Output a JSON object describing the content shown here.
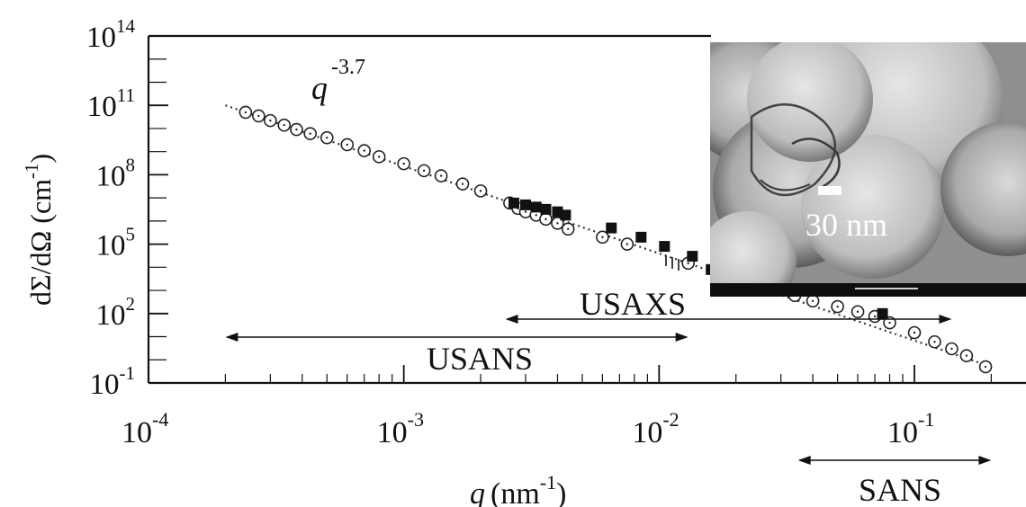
{
  "chart_data": {
    "type": "scatter",
    "scale": {
      "x": "log",
      "y": "log"
    },
    "xlim": [
      0.0001,
      0.25
    ],
    "ylim": [
      0.1,
      100000000000000
    ],
    "x_ticks": [
      {
        "value": 0.0001,
        "base": "10",
        "exp": "-4"
      },
      {
        "value": 0.001,
        "base": "10",
        "exp": "-3"
      },
      {
        "value": 0.01,
        "base": "10",
        "exp": "-2"
      },
      {
        "value": 0.1,
        "base": "10",
        "exp": "-1"
      }
    ],
    "y_ticks": [
      {
        "value": 0.1,
        "base": "10",
        "exp": "-1"
      },
      {
        "value": 100,
        "base": "10",
        "exp": "2"
      },
      {
        "value": 100000,
        "base": "10",
        "exp": "5"
      },
      {
        "value": 100000000,
        "base": "10",
        "exp": "8"
      },
      {
        "value": 100000000000,
        "base": "10",
        "exp": "11"
      },
      {
        "value": 100000000000000,
        "base": "10",
        "exp": "14"
      }
    ],
    "xlabel": {
      "var": "q",
      "unit": "(nm",
      "exp": "-1",
      "close": ")"
    },
    "ylabel": {
      "main": "dΣ/dΩ (cm",
      "exp": "-1",
      "close": ")"
    },
    "series": [
      {
        "marker": "open-circle",
        "x": [
          0.00024,
          0.00027,
          0.0003,
          0.00034,
          0.00038,
          0.00043,
          0.0005,
          0.0006,
          0.0007,
          0.0008,
          0.001,
          0.0012,
          0.0014,
          0.0017,
          0.002,
          0.0026,
          0.0028,
          0.003,
          0.0033,
          0.0036,
          0.004,
          0.0044,
          0.006,
          0.0075,
          0.013,
          0.034,
          0.04,
          0.05,
          0.06,
          0.07,
          0.08,
          0.1,
          0.12,
          0.14,
          0.16,
          0.19
        ],
        "y": [
          50000000000,
          35000000000,
          22000000000,
          14000000000,
          9000000000,
          6000000000,
          4000000000,
          2000000000,
          1100000000,
          600000000,
          300000000,
          150000000,
          90000000,
          40000000,
          20000000,
          6000000,
          3500000,
          2500000,
          1800000,
          1200000,
          800000,
          450000,
          200000,
          100000,
          15000,
          600,
          350,
          200,
          120,
          75,
          40,
          15,
          6,
          3,
          1.5,
          0.5
        ]
      },
      {
        "marker": "filled-square",
        "x": [
          0.0027,
          0.003,
          0.0033,
          0.0036,
          0.004,
          0.0043,
          0.0065,
          0.0085,
          0.0105,
          0.0135,
          0.016,
          0.019,
          0.022,
          0.075
        ],
        "y": [
          6000000,
          5000000,
          4000000,
          3200000,
          2500000,
          1800000,
          500000,
          200000,
          80000,
          30000,
          8000,
          3000,
          1500,
          100
        ]
      }
    ],
    "fit_line": {
      "label": "q",
      "exponent": "-3.7",
      "x": [
        0.0002,
        0.2
      ],
      "y": [
        100000000000,
        0.5
      ]
    },
    "ranges": [
      {
        "label": "USANS",
        "x": [
          0.0002,
          0.013
        ],
        "label_position": "below"
      },
      {
        "label": "USAXS",
        "x": [
          0.0025,
          0.14
        ],
        "label_position": "above"
      },
      {
        "label": "SANS",
        "x": [
          0.035,
          0.2
        ],
        "label_position": "below-axis"
      }
    ],
    "inset": {
      "scale_text": "30 nm",
      "footer_text": ""
    }
  }
}
